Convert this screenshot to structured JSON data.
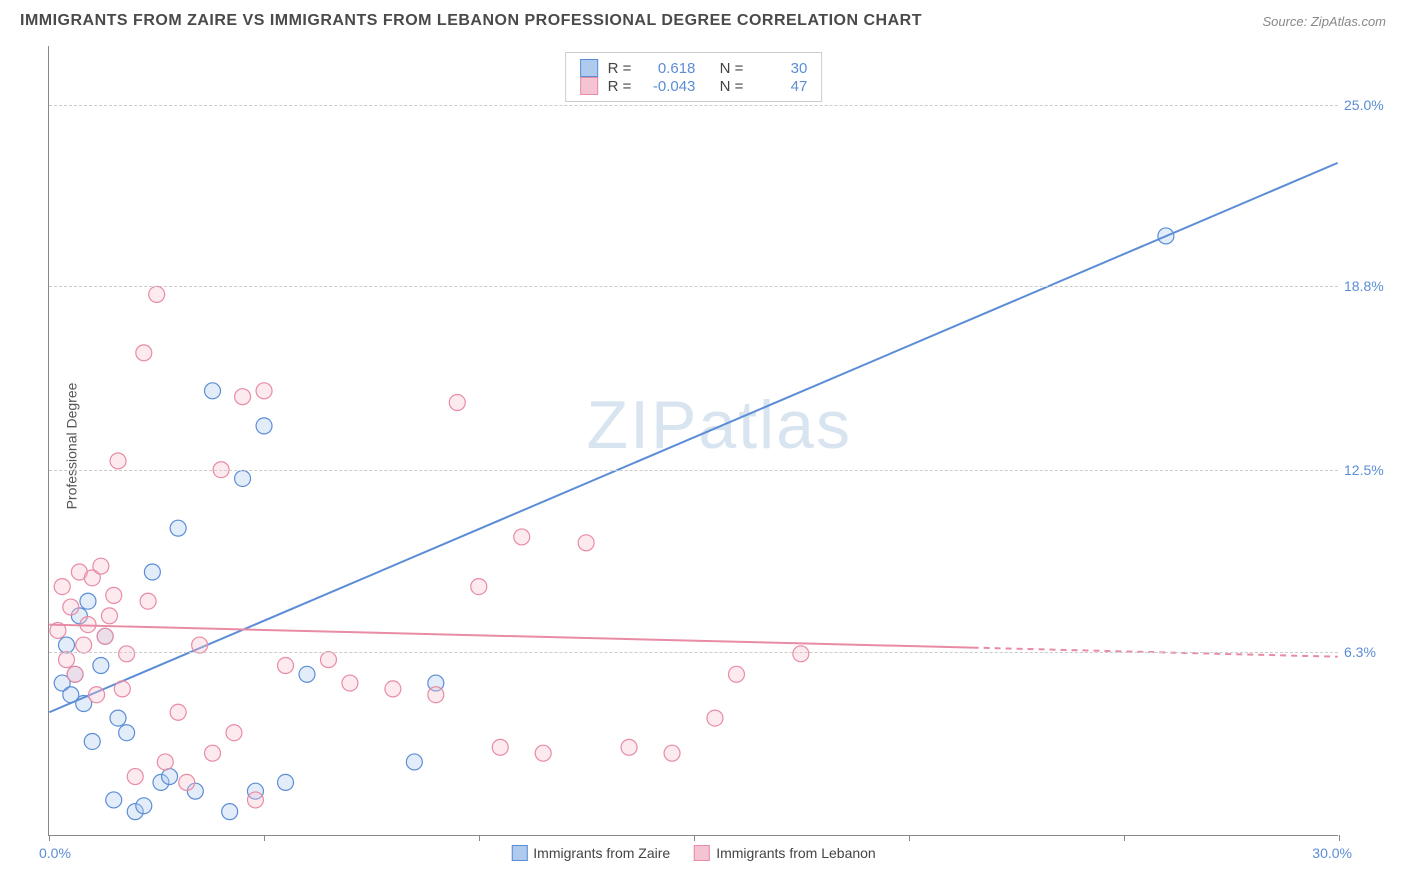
{
  "header": {
    "title": "IMMIGRANTS FROM ZAIRE VS IMMIGRANTS FROM LEBANON PROFESSIONAL DEGREE CORRELATION CHART",
    "source": "Source: ZipAtlas.com"
  },
  "watermark": {
    "zip": "ZIP",
    "atlas": "atlas"
  },
  "chart": {
    "type": "scatter",
    "background_color": "#ffffff",
    "grid_color": "#cccccc",
    "axis_color": "#888888",
    "ylabel": "Professional Degree",
    "label_fontsize": 14,
    "xlim": [
      0,
      30
    ],
    "ylim": [
      0,
      27
    ],
    "xticks_pct": [
      0,
      5,
      10,
      15,
      20,
      25,
      30
    ],
    "yticks": [
      {
        "value": 6.3,
        "label": "6.3%"
      },
      {
        "value": 12.5,
        "label": "12.5%"
      },
      {
        "value": 18.8,
        "label": "18.8%"
      },
      {
        "value": 25.0,
        "label": "25.0%"
      }
    ],
    "xaxis_min_label": "0.0%",
    "xaxis_max_label": "30.0%",
    "marker_radius": 8,
    "marker_fill_opacity": 0.35,
    "line_width": 2,
    "series": [
      {
        "name": "Immigrants from Zaire",
        "color": "#5b8dd6",
        "fill": "#aecbed",
        "stroke": "#5b8dd6",
        "R": "0.618",
        "N": "30",
        "trend": {
          "x1": 0,
          "y1": 4.2,
          "x2": 30,
          "y2": 23.0,
          "dashed_from": null
        },
        "points": [
          {
            "x": 0.3,
            "y": 5.2
          },
          {
            "x": 0.4,
            "y": 6.5
          },
          {
            "x": 0.5,
            "y": 4.8
          },
          {
            "x": 0.6,
            "y": 5.5
          },
          {
            "x": 0.7,
            "y": 7.5
          },
          {
            "x": 0.8,
            "y": 4.5
          },
          {
            "x": 0.9,
            "y": 8.0
          },
          {
            "x": 1.0,
            "y": 3.2
          },
          {
            "x": 1.2,
            "y": 5.8
          },
          {
            "x": 1.3,
            "y": 6.8
          },
          {
            "x": 1.5,
            "y": 1.2
          },
          {
            "x": 1.6,
            "y": 4.0
          },
          {
            "x": 1.8,
            "y": 3.5
          },
          {
            "x": 2.0,
            "y": 0.8
          },
          {
            "x": 2.2,
            "y": 1.0
          },
          {
            "x": 2.4,
            "y": 9.0
          },
          {
            "x": 2.6,
            "y": 1.8
          },
          {
            "x": 2.8,
            "y": 2.0
          },
          {
            "x": 3.0,
            "y": 10.5
          },
          {
            "x": 3.4,
            "y": 1.5
          },
          {
            "x": 3.8,
            "y": 15.2
          },
          {
            "x": 4.2,
            "y": 0.8
          },
          {
            "x": 4.5,
            "y": 12.2
          },
          {
            "x": 4.8,
            "y": 1.5
          },
          {
            "x": 5.0,
            "y": 14.0
          },
          {
            "x": 5.5,
            "y": 1.8
          },
          {
            "x": 6.0,
            "y": 5.5
          },
          {
            "x": 8.5,
            "y": 2.5
          },
          {
            "x": 9.0,
            "y": 5.2
          },
          {
            "x": 26.0,
            "y": 20.5
          }
        ]
      },
      {
        "name": "Immigrants from Lebanon",
        "color": "#e88ba4",
        "fill": "#f5c4d2",
        "stroke": "#e88ba4",
        "R": "-0.043",
        "N": "47",
        "trend": {
          "x1": 0,
          "y1": 7.2,
          "x2": 30,
          "y2": 6.1,
          "dashed_from": 21.5
        },
        "points": [
          {
            "x": 0.2,
            "y": 7.0
          },
          {
            "x": 0.3,
            "y": 8.5
          },
          {
            "x": 0.4,
            "y": 6.0
          },
          {
            "x": 0.5,
            "y": 7.8
          },
          {
            "x": 0.6,
            "y": 5.5
          },
          {
            "x": 0.7,
            "y": 9.0
          },
          {
            "x": 0.8,
            "y": 6.5
          },
          {
            "x": 0.9,
            "y": 7.2
          },
          {
            "x": 1.0,
            "y": 8.8
          },
          {
            "x": 1.1,
            "y": 4.8
          },
          {
            "x": 1.2,
            "y": 9.2
          },
          {
            "x": 1.3,
            "y": 6.8
          },
          {
            "x": 1.4,
            "y": 7.5
          },
          {
            "x": 1.5,
            "y": 8.2
          },
          {
            "x": 1.6,
            "y": 12.8
          },
          {
            "x": 1.7,
            "y": 5.0
          },
          {
            "x": 1.8,
            "y": 6.2
          },
          {
            "x": 2.0,
            "y": 2.0
          },
          {
            "x": 2.2,
            "y": 16.5
          },
          {
            "x": 2.3,
            "y": 8.0
          },
          {
            "x": 2.5,
            "y": 18.5
          },
          {
            "x": 2.7,
            "y": 2.5
          },
          {
            "x": 3.0,
            "y": 4.2
          },
          {
            "x": 3.2,
            "y": 1.8
          },
          {
            "x": 3.5,
            "y": 6.5
          },
          {
            "x": 3.8,
            "y": 2.8
          },
          {
            "x": 4.0,
            "y": 12.5
          },
          {
            "x": 4.3,
            "y": 3.5
          },
          {
            "x": 4.5,
            "y": 15.0
          },
          {
            "x": 4.8,
            "y": 1.2
          },
          {
            "x": 5.0,
            "y": 15.2
          },
          {
            "x": 5.5,
            "y": 5.8
          },
          {
            "x": 6.5,
            "y": 6.0
          },
          {
            "x": 7.0,
            "y": 5.2
          },
          {
            "x": 8.0,
            "y": 5.0
          },
          {
            "x": 9.0,
            "y": 4.8
          },
          {
            "x": 9.5,
            "y": 14.8
          },
          {
            "x": 10.0,
            "y": 8.5
          },
          {
            "x": 10.5,
            "y": 3.0
          },
          {
            "x": 11.0,
            "y": 10.2
          },
          {
            "x": 11.5,
            "y": 2.8
          },
          {
            "x": 12.5,
            "y": 10.0
          },
          {
            "x": 13.5,
            "y": 3.0
          },
          {
            "x": 14.5,
            "y": 2.8
          },
          {
            "x": 15.5,
            "y": 4.0
          },
          {
            "x": 16.0,
            "y": 5.5
          },
          {
            "x": 17.5,
            "y": 6.2
          }
        ]
      }
    ],
    "legend_labels": {
      "r": "R =",
      "n": "N ="
    }
  }
}
